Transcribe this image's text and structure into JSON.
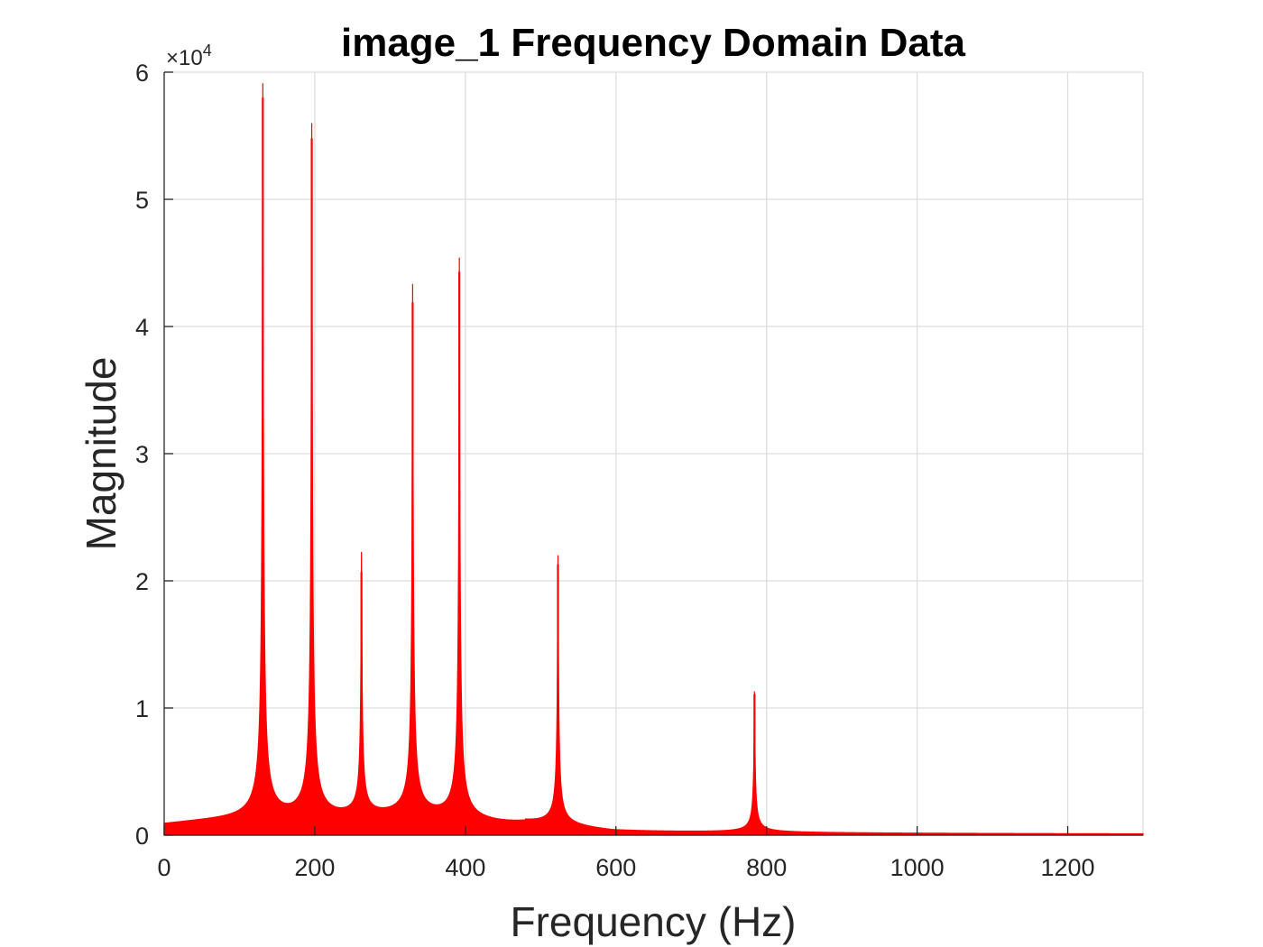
{
  "chart_data": {
    "type": "area",
    "title": "image_1 Frequency Domain Data",
    "xlabel": "Frequency (Hz)",
    "ylabel": "Magnitude",
    "xlim": [
      0,
      1300
    ],
    "ylim": [
      0,
      60000
    ],
    "x_ticks": [
      0,
      200,
      400,
      600,
      800,
      1000,
      1200
    ],
    "x_tick_labels": [
      "0",
      "200",
      "400",
      "600",
      "800",
      "1000",
      "1200"
    ],
    "y_ticks": [
      0,
      10000,
      20000,
      30000,
      40000,
      50000,
      60000
    ],
    "y_tick_labels": [
      "0",
      "1",
      "2",
      "3",
      "4",
      "5",
      "6"
    ],
    "y_exponent_label": "×10",
    "y_exponent_power": "4",
    "grid": true,
    "series": [
      {
        "color": "#ff0000",
        "baseline": 500,
        "peaks": [
          {
            "x": 131,
            "y": 58000
          },
          {
            "x": 196,
            "y": 54800
          },
          {
            "x": 262,
            "y": 20700
          },
          {
            "x": 330,
            "y": 41900
          },
          {
            "x": 392,
            "y": 44300
          },
          {
            "x": 523,
            "y": 21300
          },
          {
            "x": 784,
            "y": 11100
          }
        ]
      }
    ]
  }
}
